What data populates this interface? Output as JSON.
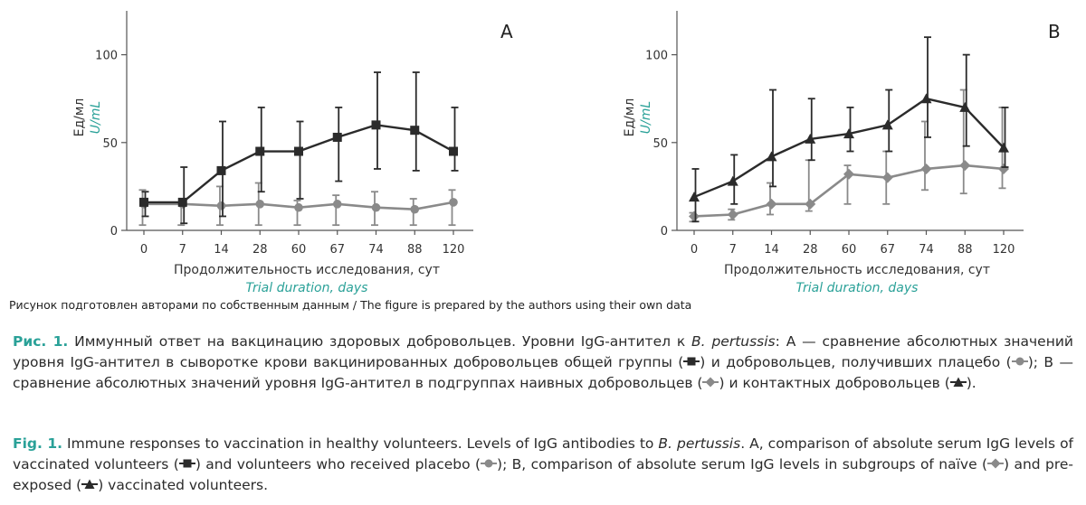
{
  "chart_data": [
    {
      "type": "line",
      "panel_label": "A",
      "categories": [
        "0",
        "7",
        "14",
        "28",
        "60",
        "67",
        "74",
        "88",
        "120"
      ],
      "ylabel_ru": "Ед/мл",
      "ylabel_en": "U/mL",
      "xlabel_ru": "Продолжительность исследования, сут",
      "xlabel_en": "Trial duration, days",
      "ylim": [
        0,
        125
      ],
      "yticks": [
        0,
        50,
        100
      ],
      "grid": false,
      "series": [
        {
          "marker": "square",
          "color": "#2b2b2b",
          "values": [
            16,
            16,
            34,
            45,
            45,
            53,
            60,
            57,
            45
          ],
          "err_low": [
            8,
            4,
            8,
            22,
            18,
            28,
            35,
            34,
            34
          ],
          "err_high": [
            22,
            36,
            62,
            70,
            62,
            70,
            90,
            90,
            70
          ]
        },
        {
          "marker": "circle",
          "color": "#8a8a8a",
          "values": [
            15,
            15,
            14,
            15,
            13,
            15,
            13,
            12,
            16
          ],
          "err_low": [
            3,
            3,
            3,
            3,
            3,
            3,
            3,
            3,
            3
          ],
          "err_high": [
            23,
            15,
            25,
            27,
            17,
            20,
            22,
            18,
            23
          ]
        }
      ]
    },
    {
      "type": "line",
      "panel_label": "B",
      "categories": [
        "0",
        "7",
        "14",
        "28",
        "60",
        "67",
        "74",
        "88",
        "120"
      ],
      "ylabel_ru": "Ед/мл",
      "ylabel_en": "U/mL",
      "xlabel_ru": "Продолжительность исследования, сут",
      "xlabel_en": "Trial duration, days",
      "ylim": [
        0,
        125
      ],
      "yticks": [
        0,
        50,
        100
      ],
      "grid": false,
      "series": [
        {
          "marker": "triangle",
          "color": "#2b2b2b",
          "values": [
            19,
            28,
            42,
            52,
            55,
            60,
            75,
            70,
            47
          ],
          "err_low": [
            5,
            15,
            25,
            40,
            45,
            45,
            53,
            48,
            36
          ],
          "err_high": [
            35,
            43,
            80,
            75,
            70,
            80,
            110,
            100,
            70
          ]
        },
        {
          "marker": "diamond",
          "color": "#8a8a8a",
          "values": [
            8,
            9,
            15,
            15,
            32,
            30,
            35,
            37,
            35
          ],
          "err_low": [
            5,
            6,
            9,
            11,
            15,
            15,
            23,
            21,
            24
          ],
          "err_high": [
            10,
            12,
            27,
            40,
            37,
            45,
            62,
            80,
            70
          ]
        }
      ]
    }
  ],
  "credit": "Рисунок подготовлен авторами по собственным данным / The figure is prepared by the authors using their own data",
  "caption_ru": {
    "lead": "Рис. 1.",
    "t1": " Иммунный ответ на вакцинацию здоровых добровольцев. Уровни IgG-антител к ",
    "italic": "B. pertussis",
    "t2": ": А — сравнение абсолютных значений уровня IgG-антител в сыворотке крови вакцинированных добровольцев общей группы (",
    "t3": ") и добровольцев, получивших плацебо (",
    "t4": "); В — сравнение абсолютных значений уровня IgG-антител в подгруппах наивных добровольцев (",
    "t5": ") и контактных добровольцев (",
    "t6": ")."
  },
  "caption_en": {
    "lead": "Fig. 1.",
    "t1": " Immune responses to vaccination in healthy volunteers. Levels of IgG antibodies to ",
    "italic": "B. pertussis",
    "t2": ". A, comparison of absolute serum IgG levels of vaccinated volunteers (",
    "t3": ") and volunteers who received placebo (",
    "t4": "); B, comparison of absolute serum IgG levels in subgroups of naïve (",
    "t5": ") and pre-exposed (",
    "t6": ") vaccinated volunteers."
  }
}
